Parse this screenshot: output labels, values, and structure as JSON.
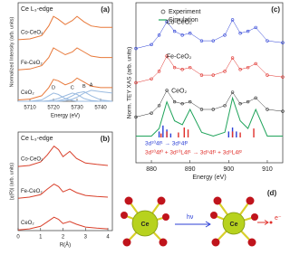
{
  "chart_data": [
    {
      "type": "line",
      "title": "Ce L₃-edge",
      "panel": "(a)",
      "xlabel": "Energy (eV)",
      "ylabel": "Normalized Intensity (arb. units)",
      "x": [
        5705,
        5710,
        5715,
        5718,
        5720,
        5722,
        5725,
        5728,
        5730,
        5733,
        5736,
        5740,
        5745
      ],
      "xlim": [
        5705,
        5745
      ],
      "xticks": [
        5710,
        5720,
        5730,
        5740
      ],
      "ylim": [
        0,
        3.6
      ],
      "series": [
        {
          "name": "Co-CeO₂",
          "color": "#e8793a",
          "values": [
            2.25,
            2.28,
            2.4,
            2.75,
            3.1,
            3.0,
            2.8,
            2.95,
            3.1,
            2.9,
            2.75,
            2.7,
            2.7
          ]
        },
        {
          "name": "Fe-CeO₂",
          "color": "#e8793a",
          "values": [
            1.15,
            1.18,
            1.3,
            1.6,
            1.95,
            1.85,
            1.7,
            1.8,
            1.95,
            1.8,
            1.65,
            1.6,
            1.6
          ]
        },
        {
          "name": "CeO₂",
          "color": "#e8793a",
          "values": [
            0.05,
            0.08,
            0.2,
            0.5,
            0.8,
            0.75,
            0.6,
            0.7,
            0.85,
            0.7,
            0.55,
            0.5,
            0.5
          ]
        },
        {
          "name": "D",
          "color": "#9bbbe0",
          "peak_label": true,
          "values": [
            0,
            0,
            0.05,
            0.2,
            0.3,
            0.25,
            0.1,
            0.03,
            0,
            0,
            0,
            0,
            0
          ]
        },
        {
          "name": "C",
          "color": "#9bbbe0",
          "peak_label": true,
          "values": [
            0,
            0,
            0,
            0.02,
            0.05,
            0.1,
            0.2,
            0.3,
            0.25,
            0.1,
            0.03,
            0,
            0
          ]
        },
        {
          "name": "B",
          "color": "#9bbbe0",
          "peak_label": true,
          "values": [
            0,
            0,
            0,
            0,
            0,
            0.02,
            0.08,
            0.2,
            0.3,
            0.35,
            0.2,
            0.05,
            0
          ]
        },
        {
          "name": "A",
          "color": "#9bbbe0",
          "peak_label": true,
          "values": [
            0,
            0,
            0,
            0,
            0,
            0,
            0.02,
            0.08,
            0.15,
            0.3,
            0.4,
            0.35,
            0.3
          ]
        }
      ]
    },
    {
      "type": "line",
      "title": "Ce L₃-edge",
      "panel": "(b)",
      "xlabel": "R(Å)",
      "ylabel": "|χ(R)| (arb. units)",
      "x": [
        0,
        0.5,
        1,
        1.3,
        1.6,
        1.8,
        2,
        2.3,
        2.6,
        3,
        3.5,
        4
      ],
      "xlim": [
        0,
        4.2
      ],
      "xticks": [
        0,
        1,
        2,
        3,
        4
      ],
      "ylim": [
        0,
        2.8
      ],
      "series": [
        {
          "name": "Co-CeO₂",
          "color": "#d9402b",
          "values": [
            1.82,
            1.85,
            1.95,
            2.15,
            2.4,
            2.3,
            2.1,
            2.25,
            2.05,
            1.92,
            1.88,
            1.85
          ]
        },
        {
          "name": "Fe-CeO₂",
          "color": "#d9402b",
          "values": [
            0.92,
            0.95,
            1.02,
            1.18,
            1.32,
            1.25,
            1.1,
            1.18,
            1.08,
            1.0,
            0.97,
            0.95
          ]
        },
        {
          "name": "CeO₂",
          "color": "#d9402b",
          "values": [
            0.02,
            0.05,
            0.12,
            0.25,
            0.38,
            0.32,
            0.2,
            0.26,
            0.18,
            0.1,
            0.07,
            0.05
          ]
        }
      ]
    },
    {
      "type": "line",
      "title": null,
      "panel": "(c)",
      "xlabel": "Energy (eV)",
      "ylabel": "Norm. TEY XAS (arb. units)",
      "legend": [
        "Experiment",
        "Simulation"
      ],
      "x": [
        876,
        880,
        882,
        884,
        886,
        888,
        890,
        893,
        896,
        899,
        901,
        903,
        905,
        907,
        910,
        914
      ],
      "xlim": [
        876,
        914
      ],
      "xticks": [
        880,
        890,
        900,
        910
      ],
      "ylim": [
        -1,
        3.2
      ],
      "series": [
        {
          "name": "Co-CeO₂",
          "color": "#2b3fd6",
          "marker": "circle",
          "values": [
            2.0,
            2.1,
            2.35,
            2.7,
            2.45,
            2.35,
            2.4,
            2.2,
            2.2,
            2.35,
            2.75,
            2.4,
            2.45,
            2.55,
            2.2,
            2.15
          ]
        },
        {
          "name": "Fe-CeO₂",
          "color": "#e0302b",
          "marker": "circle",
          "values": [
            1.1,
            1.2,
            1.4,
            1.8,
            1.5,
            1.45,
            1.5,
            1.3,
            1.3,
            1.4,
            1.75,
            1.45,
            1.5,
            1.6,
            1.3,
            1.25
          ]
        },
        {
          "name": "CeO₂",
          "color": "#333333",
          "marker": "circle",
          "values": [
            0.2,
            0.3,
            0.5,
            0.9,
            0.6,
            0.55,
            0.6,
            0.4,
            0.4,
            0.5,
            0.85,
            0.55,
            0.6,
            0.7,
            0.4,
            0.35
          ]
        },
        {
          "color": "#1fa35a",
          "values": [
            -0.3,
            -0.3,
            -0.1,
            0.6,
            0.1,
            0.0,
            0.4,
            -0.2,
            -0.3,
            -0.2,
            0.7,
            0.1,
            -0.1,
            0.4,
            -0.3,
            -0.3
          ]
        }
      ],
      "sticks": [
        {
          "color": "#2b3fd6",
          "x": [
            882,
            883,
            884,
            885,
            900,
            901,
            902
          ],
          "values": [
            0.3,
            0.6,
            0.4,
            0.2,
            0.3,
            0.5,
            0.3
          ]
        },
        {
          "color": "#e0302b",
          "x": [
            882.5,
            884,
            887,
            888.5,
            889.5,
            901,
            903,
            906.5
          ],
          "values": [
            0.2,
            0.3,
            0.25,
            0.5,
            0.4,
            0.3,
            0.25,
            0.45
          ]
        }
      ],
      "annotations": [
        {
          "text": "3d¹⁰4f¹ → 3d⁹4f²",
          "color": "#2b3fd6"
        },
        {
          "text": "3d¹⁰4f⁰ + 3d¹⁰L4f¹ → 3d⁹4f¹ + 3d⁹L4f²",
          "color": "#e0302b"
        }
      ]
    }
  ],
  "panel_d": {
    "panel": "(d)",
    "left_atom": "Ce",
    "photon": "hν",
    "right_atom": "Ce",
    "electron": "e⁻"
  }
}
